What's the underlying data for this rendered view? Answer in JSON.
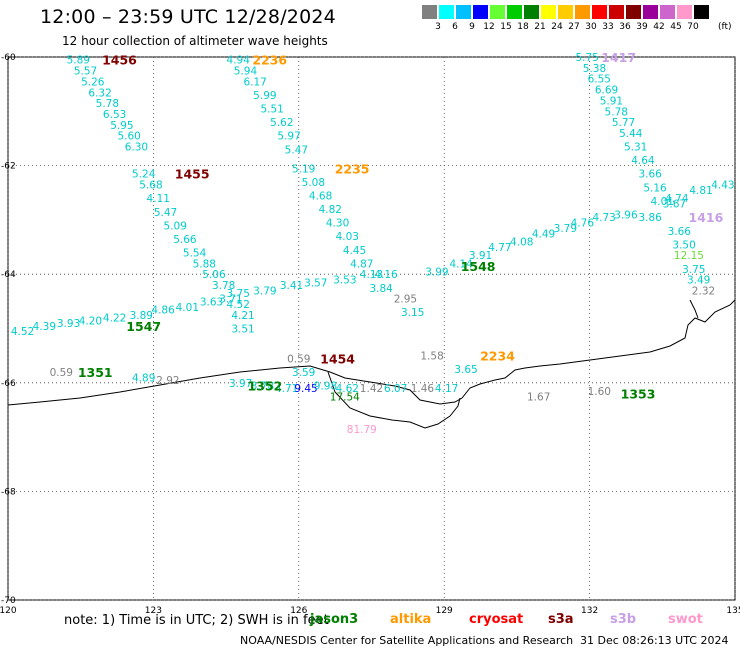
{
  "header": {
    "title": "12:00 – 23:59 UTC 12/28/2024",
    "subtitle": "12 hour collection of altimeter wave heights"
  },
  "colorbar": {
    "labels": [
      "3",
      "6",
      "9",
      "12",
      "15",
      "18",
      "21",
      "24",
      "27",
      "30",
      "33",
      "36",
      "39",
      "42",
      "45",
      "70"
    ],
    "unit": "(ft)",
    "colors": [
      "#808080",
      "#00ffff",
      "#00bfff",
      "#0000ff",
      "#66ff33",
      "#00cc00",
      "#008000",
      "#ffff00",
      "#ffcc00",
      "#ff9900",
      "#ff0000",
      "#cc0000",
      "#800000",
      "#990099",
      "#cc66cc",
      "#ff99cc",
      "#000000"
    ]
  },
  "axes": {
    "lon_ticks": [
      "120",
      "123",
      "126",
      "129",
      "132",
      "135"
    ],
    "lat_ticks": [
      "-60",
      "-62",
      "-64",
      "-66",
      "-68",
      "-70"
    ]
  },
  "footer": {
    "note": "note:  1) Time is in UTC; 2) SWH is in feet",
    "credit": "NOAA/NESDIS Center for Satellite Applications and Research",
    "generated": "31 Dec 08:26:13 UTC 2024"
  },
  "satellites": [
    {
      "name": "jason3",
      "color": "#008000"
    },
    {
      "name": "altika",
      "color": "#ff9900"
    },
    {
      "name": "cryosat",
      "color": "#ff0000"
    },
    {
      "name": "s3a",
      "color": "#800000"
    },
    {
      "name": "s3b",
      "color": "#c8a0e6"
    },
    {
      "name": "swot",
      "color": "#ff99cc"
    }
  ],
  "time_labels": [
    {
      "text": "1456",
      "color": "#800000",
      "lon": 122.3,
      "lat": -60.05
    },
    {
      "text": "1455",
      "color": "#800000",
      "lon": 123.8,
      "lat": -62.15
    },
    {
      "text": "2236",
      "color": "#ff9900",
      "lon": 125.4,
      "lat": -60.05
    },
    {
      "text": "2235",
      "color": "#ff9900",
      "lon": 127.1,
      "lat": -62.05
    },
    {
      "text": "1548",
      "color": "#008000",
      "lon": 129.7,
      "lat": -63.85
    },
    {
      "text": "1547",
      "color": "#008000",
      "lon": 122.8,
      "lat": -64.95
    },
    {
      "text": "1351",
      "color": "#008000",
      "lon": 121.8,
      "lat": -65.8
    },
    {
      "text": "1454",
      "color": "#800000",
      "lon": 126.8,
      "lat": -65.55
    },
    {
      "text": "2234",
      "color": "#ff9900",
      "lon": 130.1,
      "lat": -65.5
    },
    {
      "text": "1352",
      "color": "#008000",
      "lon": 125.3,
      "lat": -66.05
    },
    {
      "text": "1353",
      "color": "#008000",
      "lon": 133.0,
      "lat": -66.2
    },
    {
      "text": "1417",
      "color": "#c8a0e6",
      "lon": 132.6,
      "lat": -60.0
    },
    {
      "text": "1416",
      "color": "#c8a0e6",
      "lon": 134.4,
      "lat": -62.95
    }
  ],
  "wave_heights": [
    {
      "v": "5.89",
      "c": "#00cccc",
      "lon": 121.45,
      "lat": -60.05
    },
    {
      "v": "5.57",
      "c": "#00cccc",
      "lon": 121.6,
      "lat": -60.25
    },
    {
      "v": "5.26",
      "c": "#00cccc",
      "lon": 121.75,
      "lat": -60.45
    },
    {
      "v": "6.32",
      "c": "#00cccc",
      "lon": 121.9,
      "lat": -60.65
    },
    {
      "v": "5.78",
      "c": "#00cccc",
      "lon": 122.05,
      "lat": -60.85
    },
    {
      "v": "6.53",
      "c": "#00cccc",
      "lon": 122.2,
      "lat": -61.05
    },
    {
      "v": "5.95",
      "c": "#00cccc",
      "lon": 122.35,
      "lat": -61.25
    },
    {
      "v": "5.60",
      "c": "#00cccc",
      "lon": 122.5,
      "lat": -61.45
    },
    {
      "v": "6.30",
      "c": "#00cccc",
      "lon": 122.65,
      "lat": -61.65
    },
    {
      "v": "5.24",
      "c": "#00cccc",
      "lon": 122.8,
      "lat": -62.15
    },
    {
      "v": "5.68",
      "c": "#00cccc",
      "lon": 122.95,
      "lat": -62.35
    },
    {
      "v": "4.11",
      "c": "#00cccc",
      "lon": 123.1,
      "lat": -62.6
    },
    {
      "v": "5.47",
      "c": "#00cccc",
      "lon": 123.25,
      "lat": -62.85
    },
    {
      "v": "5.09",
      "c": "#00cccc",
      "lon": 123.45,
      "lat": -63.1
    },
    {
      "v": "5.66",
      "c": "#00cccc",
      "lon": 123.65,
      "lat": -63.35
    },
    {
      "v": "5.54",
      "c": "#00cccc",
      "lon": 123.85,
      "lat": -63.6
    },
    {
      "v": "5.88",
      "c": "#00cccc",
      "lon": 124.05,
      "lat": -63.8
    },
    {
      "v": "5.06",
      "c": "#00cccc",
      "lon": 124.25,
      "lat": -64.0
    },
    {
      "v": "3.78",
      "c": "#00cccc",
      "lon": 124.45,
      "lat": -64.2
    },
    {
      "v": "3.71",
      "c": "#00cccc",
      "lon": 124.6,
      "lat": -64.45
    },
    {
      "v": "4.52",
      "c": "#00cccc",
      "lon": 124.75,
      "lat": -64.55
    },
    {
      "v": "4.21",
      "c": "#00cccc",
      "lon": 124.85,
      "lat": -64.75
    },
    {
      "v": "3.51",
      "c": "#00cccc",
      "lon": 124.85,
      "lat": -65.0
    },
    {
      "v": "4.94",
      "c": "#00cccc",
      "lon": 124.75,
      "lat": -60.05
    },
    {
      "v": "5.94",
      "c": "#00cccc",
      "lon": 124.9,
      "lat": -60.25
    },
    {
      "v": "6.17",
      "c": "#00cccc",
      "lon": 125.1,
      "lat": -60.45
    },
    {
      "v": "5.99",
      "c": "#00cccc",
      "lon": 125.3,
      "lat": -60.7
    },
    {
      "v": "5.51",
      "c": "#00cccc",
      "lon": 125.45,
      "lat": -60.95
    },
    {
      "v": "5.62",
      "c": "#00cccc",
      "lon": 125.65,
      "lat": -61.2
    },
    {
      "v": "5.97",
      "c": "#00cccc",
      "lon": 125.8,
      "lat": -61.45
    },
    {
      "v": "5.47",
      "c": "#00cccc",
      "lon": 125.95,
      "lat": -61.7
    },
    {
      "v": "5.19",
      "c": "#00cccc",
      "lon": 126.1,
      "lat": -62.05
    },
    {
      "v": "5.08",
      "c": "#00cccc",
      "lon": 126.3,
      "lat": -62.3
    },
    {
      "v": "4.68",
      "c": "#00cccc",
      "lon": 126.45,
      "lat": -62.55
    },
    {
      "v": "4.82",
      "c": "#00cccc",
      "lon": 126.65,
      "lat": -62.8
    },
    {
      "v": "4.30",
      "c": "#00cccc",
      "lon": 126.8,
      "lat": -63.05
    },
    {
      "v": "4.03",
      "c": "#00cccc",
      "lon": 127.0,
      "lat": -63.3
    },
    {
      "v": "4.45",
      "c": "#00cccc",
      "lon": 127.15,
      "lat": -63.55
    },
    {
      "v": "4.87",
      "c": "#00cccc",
      "lon": 127.3,
      "lat": -63.8
    },
    {
      "v": "4.16",
      "c": "#00cccc",
      "lon": 127.8,
      "lat": -64.0
    },
    {
      "v": "3.84",
      "c": "#00cccc",
      "lon": 127.7,
      "lat": -64.25
    },
    {
      "v": "2.95",
      "c": "#808080",
      "lon": 128.2,
      "lat": -64.45
    },
    {
      "v": "3.15",
      "c": "#00cccc",
      "lon": 128.35,
      "lat": -64.7
    },
    {
      "v": "3.99",
      "c": "#00cccc",
      "lon": 128.85,
      "lat": -63.95
    },
    {
      "v": "4.14",
      "c": "#00cccc",
      "lon": 129.35,
      "lat": -63.8
    },
    {
      "v": "3.91",
      "c": "#00cccc",
      "lon": 129.75,
      "lat": -63.65
    },
    {
      "v": "4.77",
      "c": "#00cccc",
      "lon": 130.15,
      "lat": -63.5
    },
    {
      "v": "4.08",
      "c": "#00cccc",
      "lon": 130.6,
      "lat": -63.4
    },
    {
      "v": "4.49",
      "c": "#00cccc",
      "lon": 131.05,
      "lat": -63.25
    },
    {
      "v": "3.79",
      "c": "#00cccc",
      "lon": 131.5,
      "lat": -63.15
    },
    {
      "v": "4.76",
      "c": "#00cccc",
      "lon": 131.85,
      "lat": -63.05
    },
    {
      "v": "4.73",
      "c": "#00cccc",
      "lon": 132.3,
      "lat": -62.95
    },
    {
      "v": "3.96",
      "c": "#00cccc",
      "lon": 132.75,
      "lat": -62.9
    },
    {
      "v": "3.86",
      "c": "#00cccc",
      "lon": 133.25,
      "lat": -62.95
    },
    {
      "v": "4.74",
      "c": "#00cccc",
      "lon": 133.8,
      "lat": -62.6
    },
    {
      "v": "4.81",
      "c": "#00cccc",
      "lon": 134.3,
      "lat": -62.45
    },
    {
      "v": "4.43",
      "c": "#00cccc",
      "lon": 134.75,
      "lat": -62.35
    },
    {
      "v": "4.52",
      "c": "#00cccc",
      "lon": 120.3,
      "lat": -65.05
    },
    {
      "v": "4.39",
      "c": "#00cccc",
      "lon": 120.75,
      "lat": -64.95
    },
    {
      "v": "3.93",
      "c": "#00cccc",
      "lon": 121.25,
      "lat": -64.9
    },
    {
      "v": "4.20",
      "c": "#00cccc",
      "lon": 121.7,
      "lat": -64.85
    },
    {
      "v": "4.22",
      "c": "#00cccc",
      "lon": 122.2,
      "lat": -64.8
    },
    {
      "v": "3.89",
      "c": "#00cccc",
      "lon": 122.75,
      "lat": -64.75
    },
    {
      "v": "4.86",
      "c": "#00cccc",
      "lon": 123.2,
      "lat": -64.65
    },
    {
      "v": "4.01",
      "c": "#00cccc",
      "lon": 123.7,
      "lat": -64.6
    },
    {
      "v": "3.63",
      "c": "#00cccc",
      "lon": 124.2,
      "lat": -64.5
    },
    {
      "v": "3.75",
      "c": "#00cccc",
      "lon": 124.75,
      "lat": -64.35
    },
    {
      "v": "3.79",
      "c": "#00cccc",
      "lon": 125.3,
      "lat": -64.3
    },
    {
      "v": "3.41",
      "c": "#00cccc",
      "lon": 125.85,
      "lat": -64.2
    },
    {
      "v": "3.57",
      "c": "#00cccc",
      "lon": 126.35,
      "lat": -64.15
    },
    {
      "v": "3.53",
      "c": "#00cccc",
      "lon": 126.95,
      "lat": -64.1
    },
    {
      "v": "4.13",
      "c": "#00cccc",
      "lon": 127.5,
      "lat": -64.0
    },
    {
      "v": "5.75",
      "c": "#00cccc",
      "lon": 131.95,
      "lat": -60.0
    },
    {
      "v": "5.38",
      "c": "#00cccc",
      "lon": 132.1,
      "lat": -60.2
    },
    {
      "v": "6.55",
      "c": "#00cccc",
      "lon": 132.2,
      "lat": -60.4
    },
    {
      "v": "6.69",
      "c": "#00cccc",
      "lon": 132.35,
      "lat": -60.6
    },
    {
      "v": "5.91",
      "c": "#00cccc",
      "lon": 132.45,
      "lat": -60.8
    },
    {
      "v": "5.78",
      "c": "#00cccc",
      "lon": 132.55,
      "lat": -61.0
    },
    {
      "v": "5.77",
      "c": "#00cccc",
      "lon": 132.7,
      "lat": -61.2
    },
    {
      "v": "5.44",
      "c": "#00cccc",
      "lon": 132.85,
      "lat": -61.4
    },
    {
      "v": "5.31",
      "c": "#00cccc",
      "lon": 132.95,
      "lat": -61.65
    },
    {
      "v": "4.64",
      "c": "#00cccc",
      "lon": 133.1,
      "lat": -61.9
    },
    {
      "v": "3.66",
      "c": "#00cccc",
      "lon": 133.25,
      "lat": -62.15
    },
    {
      "v": "5.16",
      "c": "#00cccc",
      "lon": 133.35,
      "lat": -62.4
    },
    {
      "v": "4.01",
      "c": "#00cccc",
      "lon": 133.5,
      "lat": -62.65
    },
    {
      "v": "3.67",
      "c": "#00cccc",
      "lon": 133.75,
      "lat": -62.7
    },
    {
      "v": "3.66",
      "c": "#00cccc",
      "lon": 133.85,
      "lat": -63.2
    },
    {
      "v": "3.50",
      "c": "#00cccc",
      "lon": 133.95,
      "lat": -63.45
    },
    {
      "v": "12.15",
      "c": "#66dd33",
      "lon": 134.05,
      "lat": -63.65
    },
    {
      "v": "3.75",
      "c": "#00cccc",
      "lon": 134.15,
      "lat": -63.9
    },
    {
      "v": "3.49",
      "c": "#00cccc",
      "lon": 134.25,
      "lat": -64.1
    },
    {
      "v": "2.32",
      "c": "#808080",
      "lon": 134.35,
      "lat": -64.3
    },
    {
      "v": "0.59",
      "c": "#808080",
      "lon": 121.1,
      "lat": -65.8
    },
    {
      "v": "4.89",
      "c": "#00cccc",
      "lon": 122.8,
      "lat": -65.9
    },
    {
      "v": "2.92",
      "c": "#808080",
      "lon": 123.3,
      "lat": -65.95
    },
    {
      "v": "0.59",
      "c": "#808080",
      "lon": 126.0,
      "lat": -65.55
    },
    {
      "v": "3.59",
      "c": "#00cccc",
      "lon": 126.1,
      "lat": -65.8
    },
    {
      "v": "3.97",
      "c": "#00cccc",
      "lon": 124.8,
      "lat": -66.0
    },
    {
      "v": "3.78",
      "c": "#00cccc",
      "lon": 125.25,
      "lat": -66.05
    },
    {
      "v": "4.71",
      "c": "#00cccc",
      "lon": 125.75,
      "lat": -66.1
    },
    {
      "v": "9.45",
      "c": "#0000ff",
      "lon": 126.15,
      "lat": -66.1
    },
    {
      "v": "9.98",
      "c": "#00cccc",
      "lon": 126.55,
      "lat": -66.05
    },
    {
      "v": "4.62",
      "c": "#00cccc",
      "lon": 127.0,
      "lat": -66.1
    },
    {
      "v": "17.54",
      "c": "#008000",
      "lon": 126.95,
      "lat": -66.25
    },
    {
      "v": "1.42",
      "c": "#808080",
      "lon": 127.5,
      "lat": -66.1
    },
    {
      "v": "6.07",
      "c": "#00cccc",
      "lon": 128.0,
      "lat": -66.1
    },
    {
      "v": "1.46",
      "c": "#808080",
      "lon": 128.55,
      "lat": -66.1
    },
    {
      "v": "4.17",
      "c": "#00cccc",
      "lon": 129.05,
      "lat": -66.1
    },
    {
      "v": "1.58",
      "c": "#808080",
      "lon": 128.75,
      "lat": -65.5
    },
    {
      "v": "3.65",
      "c": "#00cccc",
      "lon": 129.45,
      "lat": -65.75
    },
    {
      "v": "1.67",
      "c": "#808080",
      "lon": 130.95,
      "lat": -66.25
    },
    {
      "v": "1.60",
      "c": "#808080",
      "lon": 132.2,
      "lat": -66.15
    },
    {
      "v": "81.79",
      "c": "#ff99cc",
      "lon": 127.3,
      "lat": -66.85
    }
  ]
}
